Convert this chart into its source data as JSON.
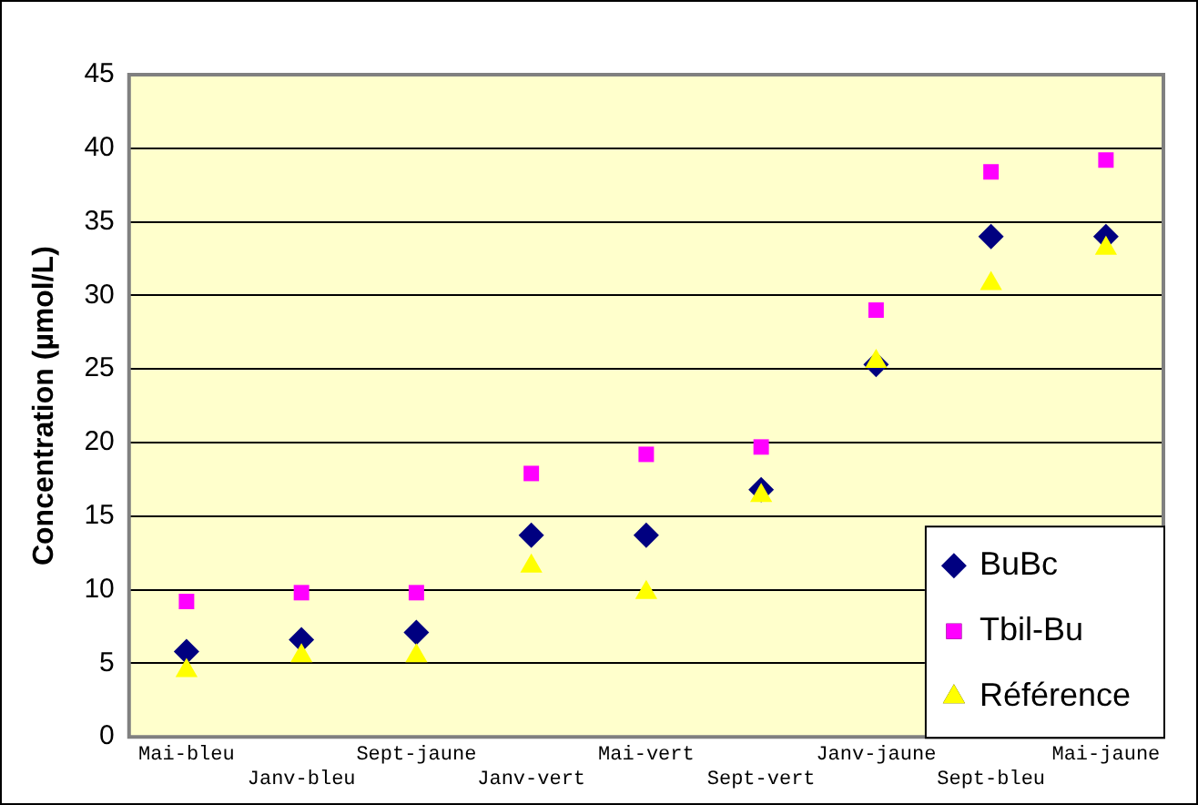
{
  "chart_data": {
    "type": "scatter",
    "ylabel": "Concentration (µmol/L)",
    "categories": [
      "Mai-bleu",
      "Janv-bleu",
      "Sept-jaune",
      "Janv-vert",
      "Mai-vert",
      "Sept-vert",
      "Janv-jaune",
      "Sept-bleu",
      "Mai-jaune"
    ],
    "series": [
      {
        "name": "BuBc",
        "color": "#000080",
        "marker": "diamond",
        "values": [
          5.8,
          6.6,
          7.1,
          13.7,
          13.7,
          16.8,
          25.3,
          34,
          34
        ]
      },
      {
        "name": "Tbil-Bu",
        "color": "#ff00ff",
        "marker": "square",
        "values": [
          9.2,
          9.8,
          9.8,
          17.9,
          19.2,
          19.7,
          29,
          38.4,
          39.2
        ]
      },
      {
        "name": "Référence",
        "color": "#ffff00",
        "marker": "triangle",
        "values": [
          4.5,
          5.5,
          5.5,
          11.6,
          9.8,
          16.4,
          25.5,
          30.8,
          33.2
        ]
      }
    ],
    "ylim": [
      0,
      45
    ],
    "yticks": [
      0,
      5,
      10,
      15,
      20,
      25,
      30,
      35,
      40,
      45
    ],
    "grid": "y",
    "legend": "bottom right"
  }
}
